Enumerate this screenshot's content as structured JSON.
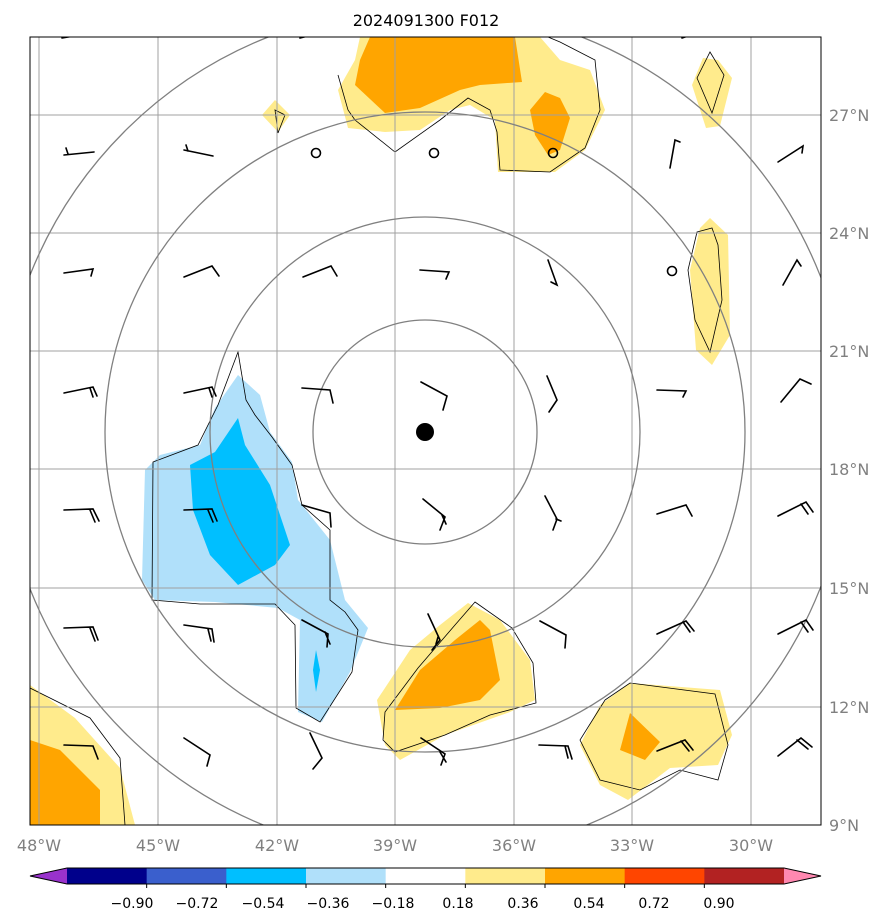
{
  "title": "2024091300 F012",
  "lat_labels": [
    "27°N",
    "24°N",
    "21°N",
    "18°N",
    "15°N",
    "12°N",
    "9°N"
  ],
  "lon_labels": [
    "48°W",
    "45°W",
    "42°W",
    "39°W",
    "36°W",
    "33°W",
    "30°W"
  ],
  "storm_center": {
    "lat": 19.0,
    "lon": -38.3
  },
  "colorbar": {
    "ticks": [
      "−0.90",
      "−0.72",
      "−0.54",
      "−0.36",
      "−0.18",
      "0.18",
      "0.36",
      "0.54",
      "0.72",
      "0.90"
    ],
    "colors": [
      "#9932cc",
      "#00008b",
      "#3a5fcd",
      "#00bfff",
      "#b0e0fa",
      "#ffffff",
      "#ffeb8c",
      "#ffa500",
      "#ff4500",
      "#b22222",
      "#ff88b0"
    ]
  }
}
